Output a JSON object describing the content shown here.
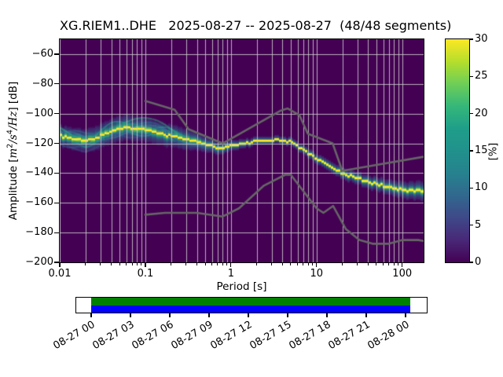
{
  "title": "XG.RIEM1..DHE   2025-08-27 -- 2025-08-27  (48/48 segments)",
  "axes": {
    "xlabel": "Period [s]",
    "ylabel": {
      "prefix": "Amplitude [",
      "m": "m",
      "m_exp": "2",
      "slash1": "/",
      "s": "s",
      "s_exp": "4",
      "slash2": "/",
      "hz": "Hz",
      "suffix": "] [dB]"
    },
    "x_ticks": [
      {
        "label": "0.01",
        "value": 0.01
      },
      {
        "label": "0.1",
        "value": 0.1
      },
      {
        "label": "1",
        "value": 1
      },
      {
        "label": "10",
        "value": 10
      },
      {
        "label": "100",
        "value": 100
      }
    ],
    "y_ticks": [
      {
        "label": "−60",
        "value": -60
      },
      {
        "label": "−80",
        "value": -80
      },
      {
        "label": "−100",
        "value": -100
      },
      {
        "label": "−120",
        "value": -120
      },
      {
        "label": "−140",
        "value": -140
      },
      {
        "label": "−160",
        "value": -160
      },
      {
        "label": "−180",
        "value": -180
      },
      {
        "label": "−200",
        "value": -200
      }
    ]
  },
  "colorbar": {
    "label": "[%]",
    "min": 0,
    "max": 30,
    "ticks": [
      0,
      5,
      10,
      15,
      20,
      25,
      30
    ]
  },
  "timeline": {
    "tick_labels": [
      "08-27 00",
      "08-27 03",
      "08-27 06",
      "08-27 09",
      "08-27 12",
      "08-27 15",
      "08-27 18",
      "08-27 21",
      "08-28 00"
    ],
    "coverage_top_color": "#008000",
    "coverage_bottom_color": "#0000ff"
  },
  "colors": {
    "mesh_background": "#440154",
    "grid": "#cdcdcd",
    "noise_model_gray": "#666666",
    "mode_yellow": "#fde725",
    "spine": "#000000",
    "figure_background": "#ffffff"
  },
  "chart_data": {
    "type": "heatmap",
    "subtype": "ppsd-probabilistic-power-spectral-density",
    "title": "XG.RIEM1..DHE   2025-08-27 -- 2025-08-27  (48/48 segments)",
    "xlabel": "Period [s]",
    "ylabel": "Amplitude [m^2/s^4/Hz] [dB]",
    "xscale": "log",
    "xlim": [
      0.01,
      178
    ],
    "ylim": [
      -200,
      -50
    ],
    "grid": true,
    "colorbar_label": "[%]",
    "colorbar_range": [
      0,
      30
    ],
    "colormap_viridis": [
      "#440154",
      "#482878",
      "#3e4989",
      "#31688e",
      "#26828e",
      "#21918c",
      "#1f9e89",
      "#35b779",
      "#6ece58",
      "#b5de2b",
      "#fde725"
    ],
    "mode_curve": {
      "comment": "highest-probability PSD ridge (yellow), dB vs period",
      "period_s": [
        0.01,
        0.014,
        0.02,
        0.028,
        0.04,
        0.055,
        0.075,
        0.1,
        0.14,
        0.2,
        0.28,
        0.4,
        0.55,
        0.75,
        0.95,
        1.2,
        1.6,
        2.2,
        3.0,
        3.8,
        5.0,
        6.5,
        8.5,
        11,
        15,
        20,
        28,
        40,
        60,
        90,
        130,
        178
      ],
      "db": [
        -115.0,
        -116.8,
        -118.2,
        -115.5,
        -111.5,
        -109.6,
        -109.8,
        -110.8,
        -112.6,
        -115.3,
        -117.0,
        -119.0,
        -121.5,
        -123.7,
        -122.2,
        -121.0,
        -119.9,
        -118.5,
        -117.7,
        -117.5,
        -119.3,
        -123.0,
        -127.5,
        -131.5,
        -136.3,
        -139.8,
        -143.0,
        -145.8,
        -148.5,
        -150.5,
        -151.8,
        -152.5
      ]
    },
    "spread_halfwidth_db": {
      "period_s": [
        0.01,
        0.03,
        0.06,
        0.1,
        0.2,
        0.3,
        0.5,
        0.8,
        1.5,
        3.0,
        6.0,
        10,
        20,
        40,
        80,
        130,
        178
      ],
      "db": [
        6.0,
        7.0,
        7.5,
        7.0,
        6.5,
        6.0,
        4.5,
        3.5,
        2.6,
        2.4,
        2.6,
        3.0,
        3.4,
        3.9,
        4.6,
        5.2,
        5.8
      ]
    },
    "noise_models": {
      "nhnm": {
        "period_s": [
          0.1,
          0.22,
          0.32,
          0.8,
          3.8,
          4.6,
          6.3,
          7.9,
          15.4,
          20.0,
          178.0
        ],
        "db": [
          -91.5,
          -97.4,
          -110.5,
          -120.0,
          -98.0,
          -96.5,
          -101.0,
          -113.5,
          -120.0,
          -138.5,
          -129.0
        ]
      },
      "nlnm": {
        "period_s": [
          0.1,
          0.17,
          0.4,
          0.8,
          1.24,
          2.4,
          4.3,
          5.0,
          10.0,
          12.0,
          15.6,
          21.9,
          31.6,
          45.0,
          70.0,
          101.0,
          154.0,
          178.0
        ],
        "db": [
          -168.0,
          -166.7,
          -166.7,
          -169.2,
          -163.7,
          -148.6,
          -141.1,
          -141.1,
          -163.7,
          -166.7,
          -162.1,
          -177.5,
          -185.0,
          -187.5,
          -187.5,
          -185.0,
          -185.0,
          -185.6
        ]
      }
    },
    "segments_used": "48/48",
    "date_range": [
      "2025-08-27",
      "2025-08-27"
    ]
  }
}
